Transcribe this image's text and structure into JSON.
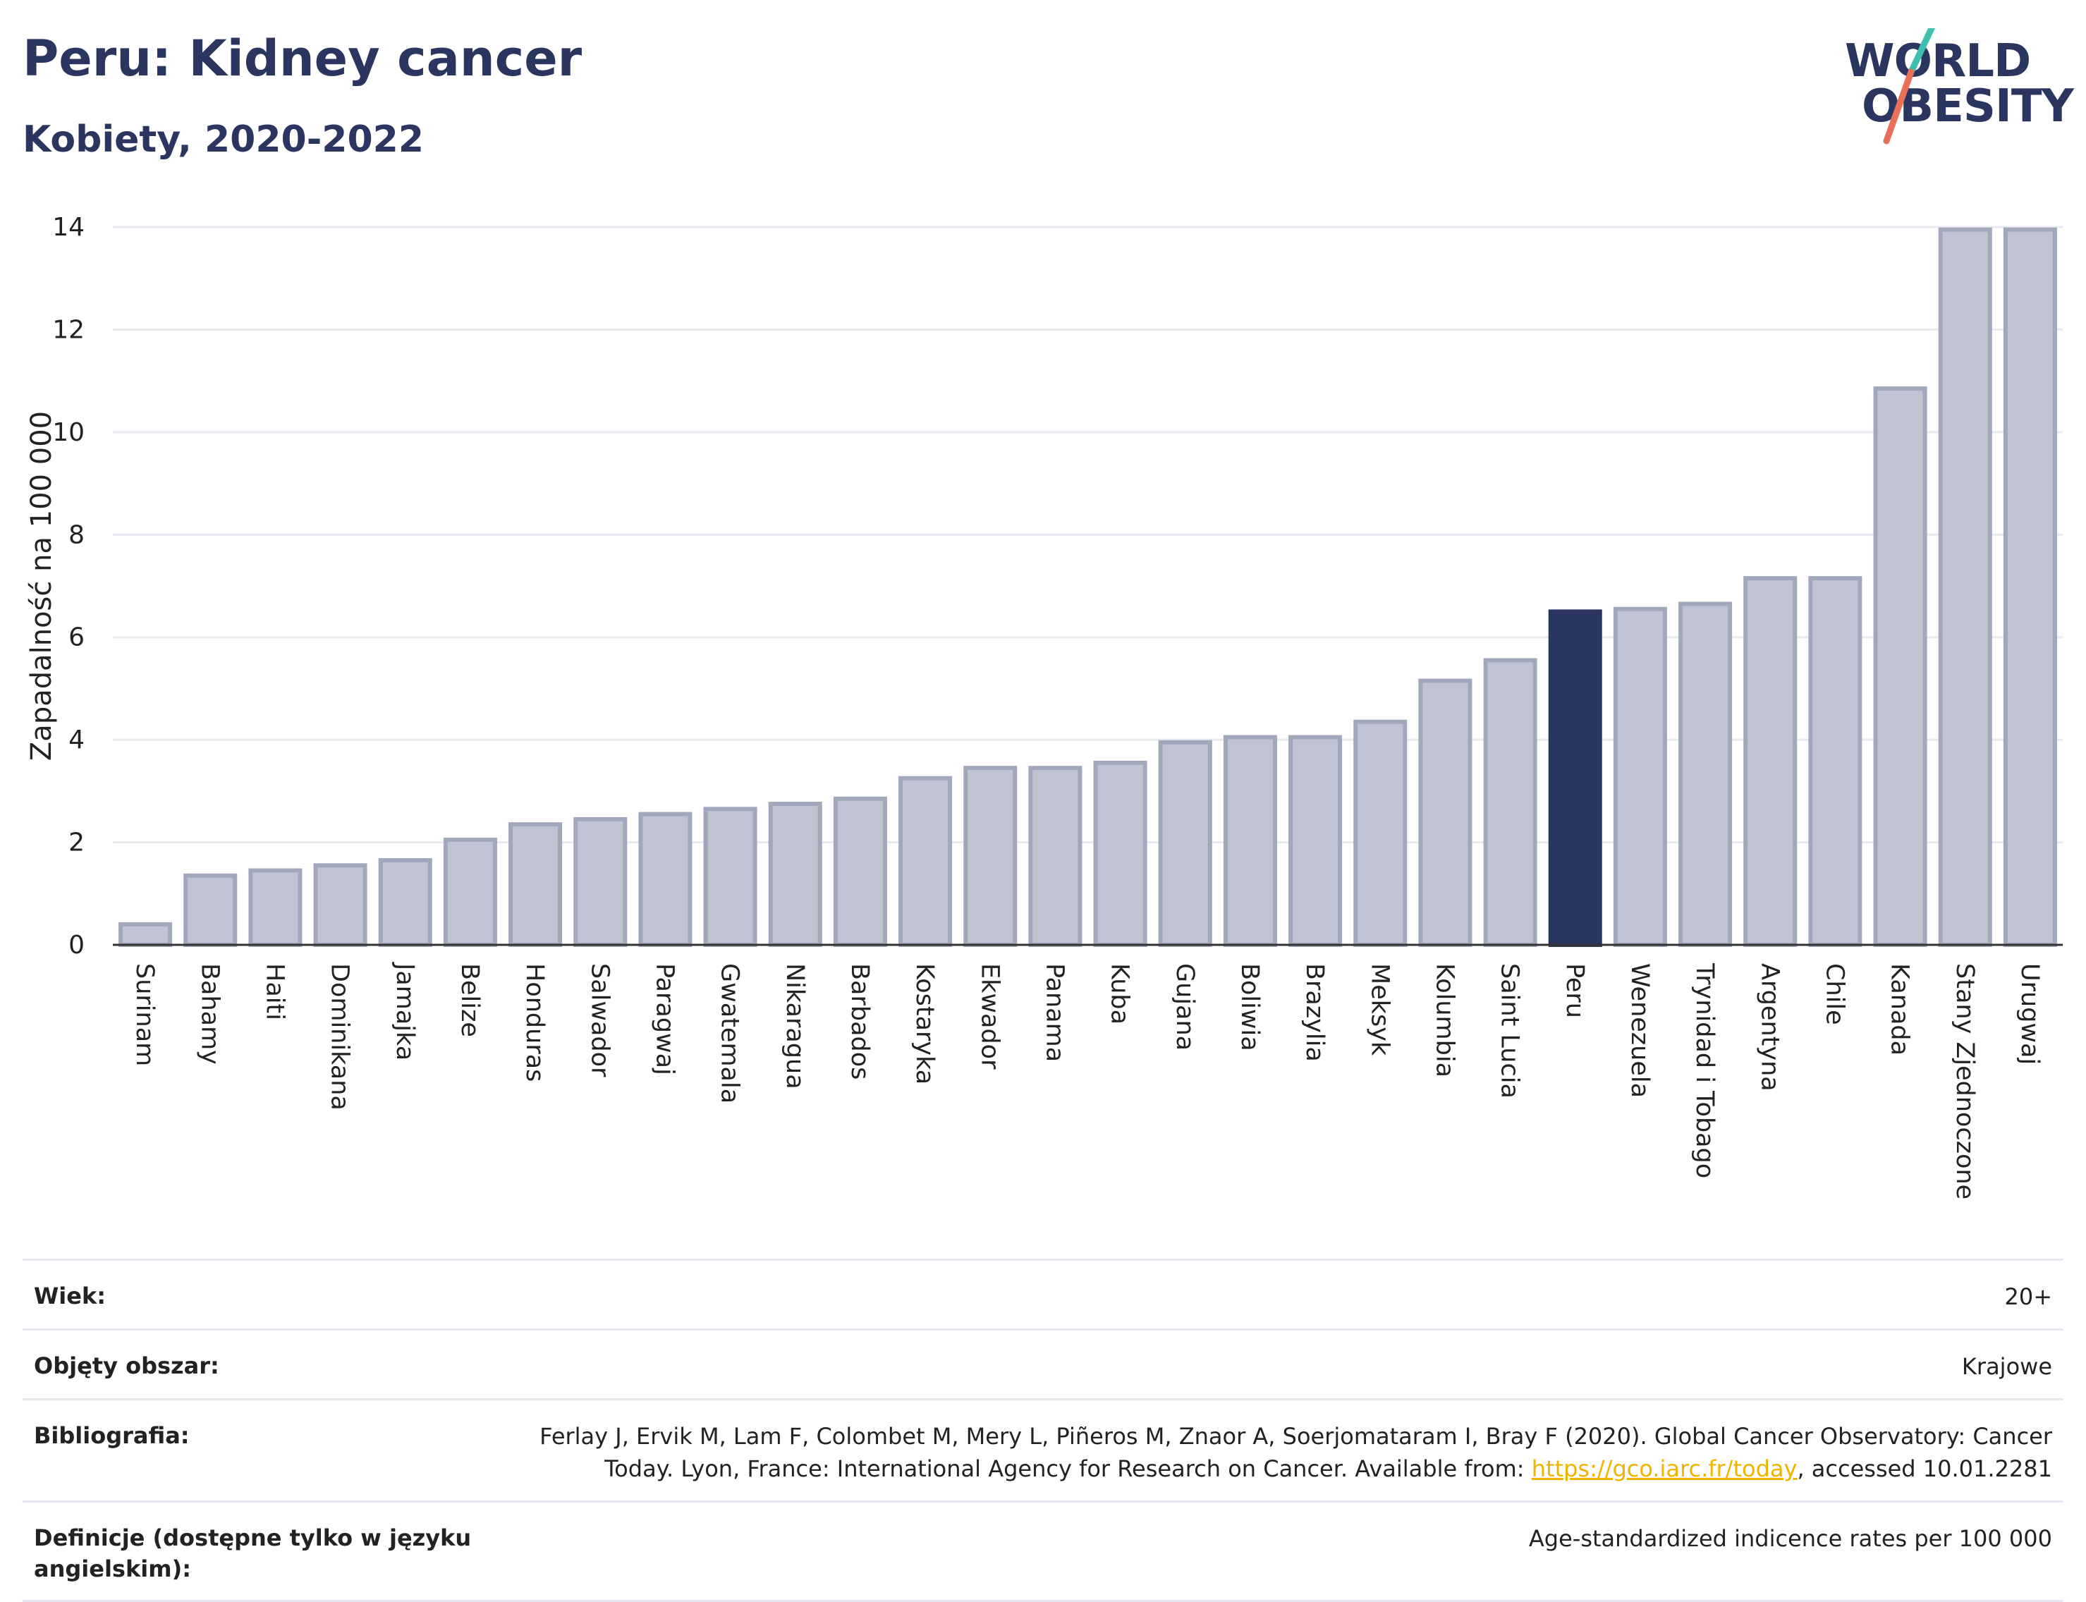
{
  "header": {
    "title": "Peru: Kidney cancer",
    "subtitle": "Kobiety, 2020-2022"
  },
  "logo": {
    "line1": "WORLD",
    "line2": "OBESITY",
    "colors": {
      "text": "#2b3660",
      "slash_top": "#3fbfb0",
      "slash_bottom": "#e8705a"
    }
  },
  "colors": {
    "bar_default": "#c0c4d2",
    "bar_border": "#a2a8bc",
    "bar_highlight": "#2b3660",
    "grid": "#e8eaf0",
    "axis": "#333333"
  },
  "chart_data": {
    "type": "bar",
    "title": "",
    "xlabel": "",
    "ylabel": "Zapadalność na 100 000",
    "ylim": [
      0,
      14
    ],
    "yticks": [
      0,
      2,
      4,
      6,
      8,
      10,
      12,
      14
    ],
    "grid": true,
    "highlight": "Peru",
    "categories": [
      "Surinam",
      "Bahamy",
      "Haiti",
      "Dominikana",
      "Jamajka",
      "Belize",
      "Honduras",
      "Salwador",
      "Paragwaj",
      "Gwatemala",
      "Nikaragua",
      "Barbados",
      "Kostaryka",
      "Ekwador",
      "Panama",
      "Kuba",
      "Gujana",
      "Boliwia",
      "Brazylia",
      "Meksyk",
      "Kolumbia",
      "Saint Lucia",
      "Peru",
      "Wenezuela",
      "Trynidad i Tobago",
      "Argentyna",
      "Chile",
      "Kanada",
      "Stany Zjednoczone",
      "Urugwaj"
    ],
    "values": [
      0.4,
      1.35,
      1.45,
      1.55,
      1.65,
      2.05,
      2.35,
      2.45,
      2.55,
      2.65,
      2.75,
      2.85,
      3.25,
      3.45,
      3.45,
      3.55,
      3.95,
      4.05,
      4.05,
      4.35,
      5.15,
      5.55,
      6.5,
      6.55,
      6.65,
      7.15,
      7.15,
      10.85,
      13.95,
      13.95
    ]
  },
  "meta": {
    "age": {
      "label": "Wiek:",
      "value": "20+"
    },
    "coverage": {
      "label": "Objęty obszar:",
      "value": "Krajowe"
    },
    "bibliography": {
      "label": "Bibliografia:",
      "text_before": "Ferlay J, Ervik M, Lam F, Colombet M, Mery L, Piñeros M, Znaor A, Soerjomataram I, Bray F (2020). Global Cancer Observatory: Cancer Today. Lyon, France: International Agency for Research on Cancer. Available from: ",
      "link": "https://gco.iarc.fr/today",
      "text_after": ", accessed 10.01.2281"
    },
    "definitions": {
      "label": "Definicje (dostępne tylko w języku angielskim):",
      "value": "Age-standardized indicence rates per 100 000"
    }
  }
}
